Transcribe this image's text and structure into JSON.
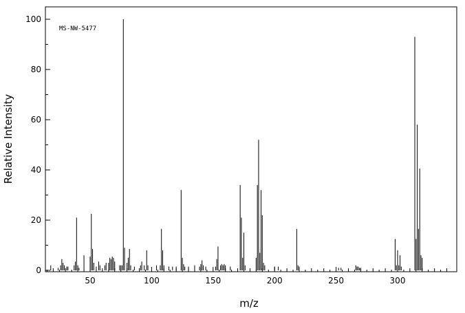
{
  "chart_data": {
    "type": "bar",
    "annotation": "MS-NW-5477",
    "xlabel": "m/z",
    "ylabel": "Relative Intensity",
    "xlim": [
      10,
      345
    ],
    "ylim": [
      0,
      105
    ],
    "xticks": [
      50,
      100,
      150,
      200,
      250,
      300
    ],
    "yticks": [
      0,
      20,
      40,
      60,
      80,
      100
    ],
    "grid": false,
    "peaks": [
      [
        18,
        2
      ],
      [
        24,
        1
      ],
      [
        26,
        2
      ],
      [
        27,
        4.5
      ],
      [
        28,
        3
      ],
      [
        29,
        2
      ],
      [
        31,
        1.5
      ],
      [
        32,
        1.5
      ],
      [
        37,
        2
      ],
      [
        38,
        3.5
      ],
      [
        39,
        21
      ],
      [
        40,
        2
      ],
      [
        41,
        1
      ],
      [
        45,
        6
      ],
      [
        50,
        5.5
      ],
      [
        51,
        22.5
      ],
      [
        52,
        8.5
      ],
      [
        53,
        3
      ],
      [
        55,
        1.5
      ],
      [
        57,
        3.5
      ],
      [
        58,
        2
      ],
      [
        62,
        2
      ],
      [
        63,
        3
      ],
      [
        65,
        3
      ],
      [
        66,
        5
      ],
      [
        67,
        4.5
      ],
      [
        68,
        5.5
      ],
      [
        69,
        5
      ],
      [
        70,
        3.5
      ],
      [
        74,
        2
      ],
      [
        75,
        2
      ],
      [
        76,
        2
      ],
      [
        77,
        100
      ],
      [
        78,
        9
      ],
      [
        80,
        3
      ],
      [
        81,
        5
      ],
      [
        82,
        8.5
      ],
      [
        83,
        2
      ],
      [
        86,
        1.5
      ],
      [
        91,
        2
      ],
      [
        92,
        3.5
      ],
      [
        94,
        2
      ],
      [
        96,
        8
      ],
      [
        97,
        2
      ],
      [
        104,
        2
      ],
      [
        107,
        2
      ],
      [
        108,
        16.5
      ],
      [
        109,
        8
      ],
      [
        110,
        2
      ],
      [
        114,
        1.5
      ],
      [
        117,
        1.5
      ],
      [
        120,
        1.5
      ],
      [
        124,
        32
      ],
      [
        125,
        5
      ],
      [
        126,
        2.5
      ],
      [
        127,
        1.5
      ],
      [
        130,
        1.5
      ],
      [
        135,
        2
      ],
      [
        139,
        1.5
      ],
      [
        140,
        2.5
      ],
      [
        141,
        4
      ],
      [
        142,
        2
      ],
      [
        144,
        1.5
      ],
      [
        152,
        1.5
      ],
      [
        153,
        4.5
      ],
      [
        154,
        9.5
      ],
      [
        156,
        2
      ],
      [
        157,
        2.5
      ],
      [
        158,
        2
      ],
      [
        159,
        2.5
      ],
      [
        160,
        2
      ],
      [
        164,
        1.5
      ],
      [
        172,
        34
      ],
      [
        173,
        21
      ],
      [
        174,
        5
      ],
      [
        175,
        15
      ],
      [
        176,
        2
      ],
      [
        185,
        5
      ],
      [
        186,
        34
      ],
      [
        187,
        52
      ],
      [
        188,
        7
      ],
      [
        189,
        32
      ],
      [
        190,
        22
      ],
      [
        191,
        3
      ],
      [
        192,
        2
      ],
      [
        200,
        1.5
      ],
      [
        203,
        1.5
      ],
      [
        218,
        16.5
      ],
      [
        219,
        2
      ],
      [
        220,
        1.5
      ],
      [
        252,
        1
      ],
      [
        254,
        1
      ],
      [
        266,
        2
      ],
      [
        267,
        1.5
      ],
      [
        268,
        1.5
      ],
      [
        269,
        1
      ],
      [
        270,
        1
      ],
      [
        298,
        12.5
      ],
      [
        299,
        2
      ],
      [
        300,
        8
      ],
      [
        301,
        2
      ],
      [
        302,
        6
      ],
      [
        303,
        1.5
      ],
      [
        314,
        93
      ],
      [
        315,
        12.5
      ],
      [
        316,
        58
      ],
      [
        317,
        16.5
      ],
      [
        318,
        40.5
      ],
      [
        319,
        6
      ],
      [
        320,
        5
      ]
    ]
  }
}
